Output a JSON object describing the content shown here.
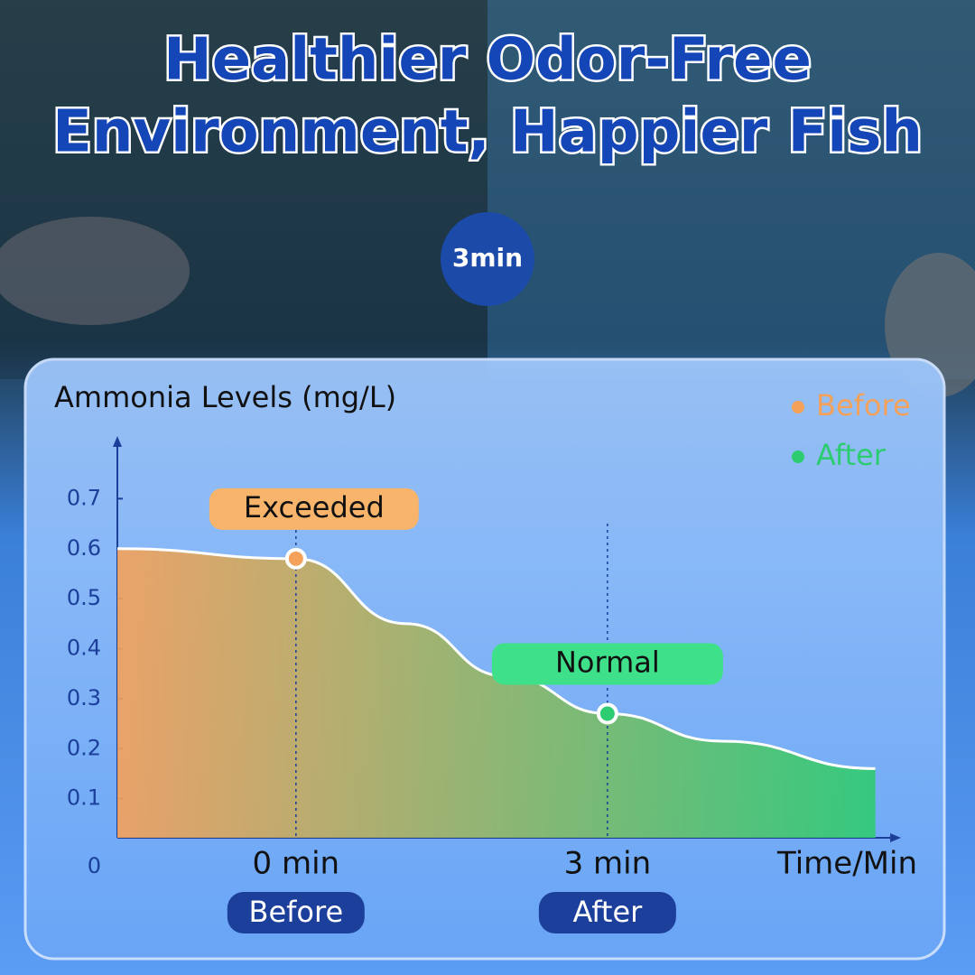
{
  "header": {
    "title_lines": [
      "Healthier Odor-Free",
      "Environment, Happier Fish"
    ],
    "badge": "3min"
  },
  "chart_data": {
    "type": "area",
    "y_label": "Ammonia Levels (mg/L)",
    "x_label": "Time/Min",
    "x": [
      -1.72,
      0,
      1.06,
      2.02,
      3,
      4.1,
      5.58
    ],
    "values": [
      0.6,
      0.58,
      0.45,
      0.345,
      0.27,
      0.215,
      0.16
    ],
    "xlim": [
      -1.72,
      5.74
    ],
    "xticks": [
      {
        "value": 0,
        "label": "0 min"
      },
      {
        "value": 3,
        "label": "3 min"
      }
    ],
    "x_sublabels": [
      "Before",
      "After"
    ],
    "ylim": [
      0,
      0.8
    ],
    "yticks": [
      0,
      0.1,
      0.2,
      0.3,
      0.4,
      0.5,
      0.6,
      0.7
    ],
    "legend": [
      {
        "label": "Before",
        "color": "#f5a15a"
      },
      {
        "label": "After",
        "color": "#2ecc71"
      }
    ],
    "annotations": [
      {
        "text": "Exceeded",
        "index": 1,
        "color": "#f7b46a"
      },
      {
        "text": "Normal",
        "index": 4,
        "color": "#3ee08a"
      }
    ]
  }
}
